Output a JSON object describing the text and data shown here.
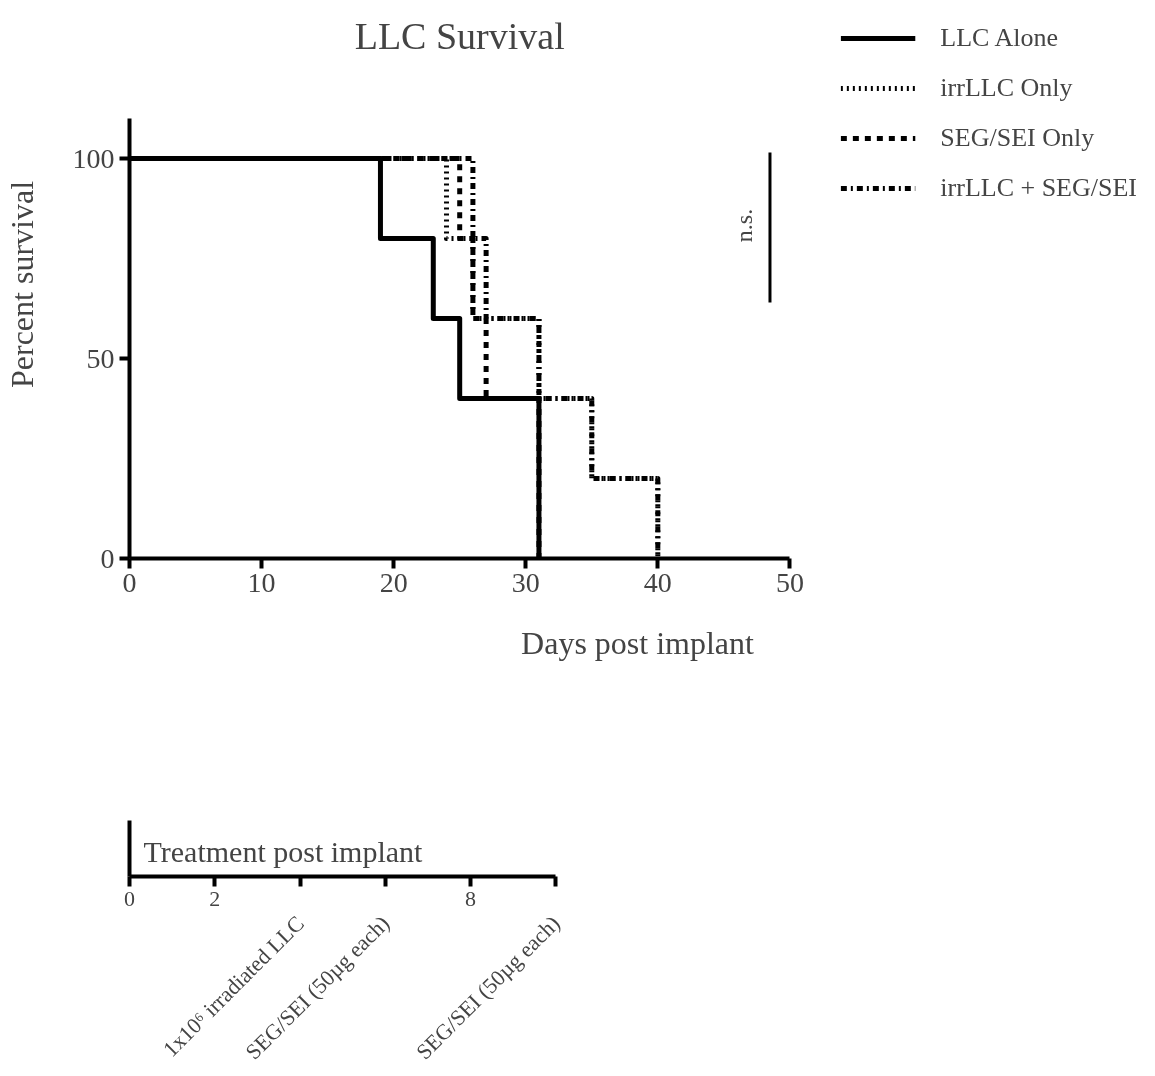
{
  "chart_data": [
    {
      "type": "step",
      "title": "LLC Survival",
      "xlabel": "Days post implant",
      "ylabel": "Percent survival",
      "xlim": [
        0,
        50
      ],
      "xticks": [
        0,
        10,
        20,
        30,
        40,
        50
      ],
      "ylim": [
        0,
        110
      ],
      "yticks": [
        0,
        50,
        100
      ],
      "grid": false,
      "legend": "top right",
      "marker": "none",
      "series": [
        {
          "name": "LLC Alone",
          "color": "#000000",
          "line_style": "solid",
          "x": [
            0,
            19,
            23,
            25,
            31
          ],
          "values": [
            100,
            80,
            60,
            40,
            0
          ]
        },
        {
          "name": "irrLLC Only",
          "color": "#000000",
          "line_style": "dotted",
          "x": [
            0,
            24,
            26,
            31,
            35,
            40
          ],
          "values": [
            100,
            80,
            60,
            40,
            20,
            0
          ]
        },
        {
          "name": "SEG/SEI Only",
          "color": "#000000",
          "line_style": "dashed",
          "x": [
            0,
            25,
            26,
            27,
            31
          ],
          "values": [
            100,
            80,
            60,
            40,
            0
          ]
        },
        {
          "name": "irrLLC + SEG/SEI",
          "color": "#000000",
          "line_style": "dashdot",
          "x": [
            0,
            26,
            27,
            31,
            35,
            40
          ],
          "values": [
            100,
            80,
            60,
            40,
            20,
            0
          ]
        }
      ],
      "annotations": [
        "n.s."
      ]
    },
    {
      "type": "other",
      "title": "Treatment post implant",
      "annotations": [
        "0",
        "2",
        "1x10⁶ irradiated LLC",
        "SEG/SEI (50µg each)",
        "8",
        "SEG/SEI (50µg each)"
      ]
    }
  ]
}
